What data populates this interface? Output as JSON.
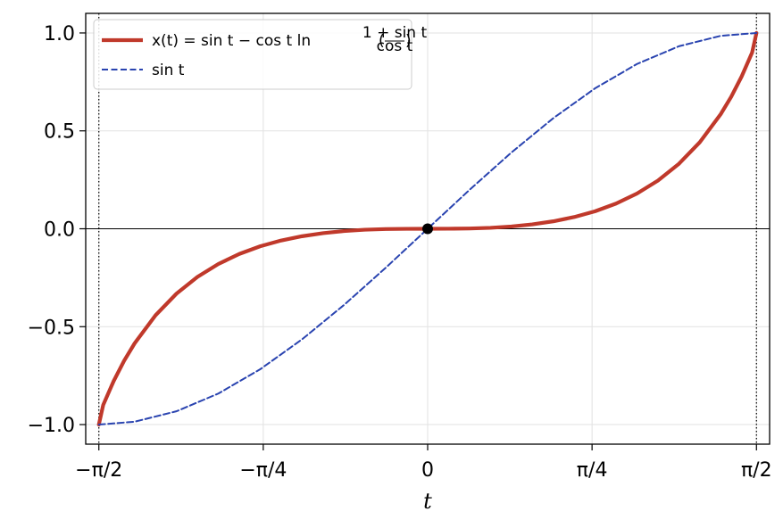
{
  "chart_data": {
    "type": "line",
    "title": "",
    "xlabel": "t",
    "ylabel": "",
    "xlim": [
      -1.6336,
      1.6336
    ],
    "ylim": [
      -1.1,
      1.1
    ],
    "grid": true,
    "legend_position": "top-left",
    "x_ticks": [
      {
        "value": -1.5708,
        "label": "−π/2"
      },
      {
        "value": -0.7854,
        "label": "−π/4"
      },
      {
        "value": 0,
        "label": "0"
      },
      {
        "value": 0.7854,
        "label": "π/4"
      },
      {
        "value": 1.5708,
        "label": "π/2"
      }
    ],
    "y_ticks": [
      {
        "value": -1.0,
        "label": "−1.0"
      },
      {
        "value": -0.5,
        "label": "−0.5"
      },
      {
        "value": 0.0,
        "label": "0.0"
      },
      {
        "value": 0.5,
        "label": "0.5"
      },
      {
        "value": 1.0,
        "label": "1.0"
      }
    ],
    "vertical_reference_lines": [
      -1.5708,
      1.5708
    ],
    "horizontal_reference_line": 0,
    "series": [
      {
        "name": "x(t) = sin t − cos t ln ((1 + sin t)/cos t)",
        "color": "#c0392b",
        "style": "solid",
        "x": [
          -1.5708,
          -1.55,
          -1.5,
          -1.45,
          -1.4,
          -1.3,
          -1.2,
          -1.1,
          -1.0,
          -0.9,
          -0.8,
          -0.7,
          -0.6,
          -0.5,
          -0.4,
          -0.3,
          -0.2,
          -0.1,
          0,
          0.1,
          0.2,
          0.3,
          0.4,
          0.5,
          0.6,
          0.7,
          0.8,
          0.9,
          1.0,
          1.1,
          1.2,
          1.3,
          1.4,
          1.45,
          1.5,
          1.55,
          1.5708
        ],
        "y": [
          -1.0,
          -0.9,
          -0.7777,
          -0.6737,
          -0.5852,
          -0.4418,
          -0.3314,
          -0.246,
          -0.18,
          -0.1287,
          -0.0894,
          -0.0599,
          -0.0381,
          -0.0224,
          -0.0116,
          -0.0049,
          -0.0015,
          -0.0002,
          0.0,
          0.0002,
          0.0015,
          0.0049,
          0.0116,
          0.0224,
          0.0381,
          0.0599,
          0.0894,
          0.1287,
          0.18,
          0.246,
          0.3314,
          0.4418,
          0.5852,
          0.6737,
          0.7777,
          0.9,
          1.0
        ]
      },
      {
        "name": "sin t",
        "color": "#2a44b0",
        "style": "dashed",
        "x": [
          -1.5708,
          -1.4,
          -1.2,
          -1.0,
          -0.8,
          -0.6,
          -0.4,
          -0.2,
          0,
          0.2,
          0.4,
          0.6,
          0.8,
          1.0,
          1.2,
          1.4,
          1.5708
        ],
        "y": [
          -1.0,
          -0.9854,
          -0.932,
          -0.8415,
          -0.7174,
          -0.5646,
          -0.3894,
          -0.1987,
          0.0,
          0.1987,
          0.3894,
          0.5646,
          0.7174,
          0.8415,
          0.932,
          0.9854,
          1.0
        ]
      }
    ],
    "markers": [
      {
        "x": 0,
        "y": 0,
        "color": "#000000"
      }
    ],
    "legend": {
      "entries": [
        {
          "math_parts": {
            "fn": "x(t) = sin t − cos t ln",
            "num": "1 + sin t",
            "den": "cos t"
          }
        },
        {
          "text": "sin t"
        }
      ]
    }
  }
}
